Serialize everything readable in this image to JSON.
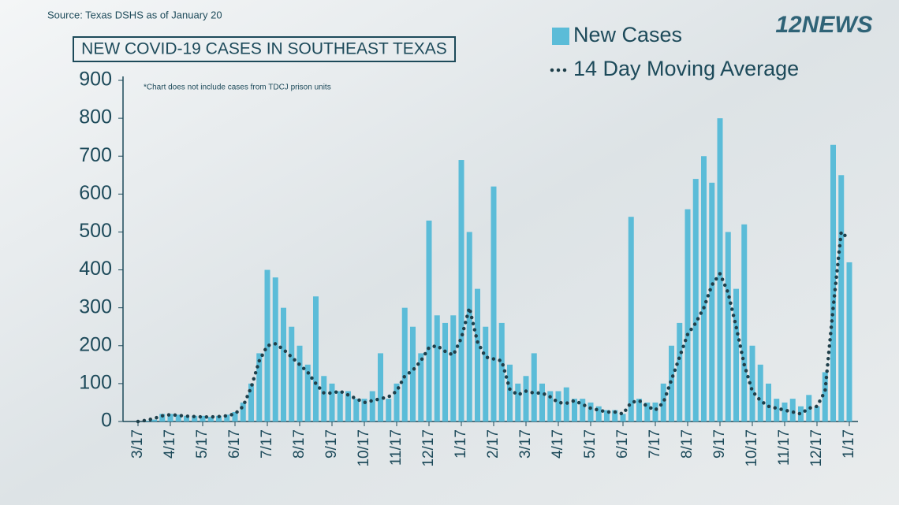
{
  "source": "Source: Texas DSHS as of January 20",
  "logo": "12NEWS",
  "chart_data": {
    "type": "bar",
    "title": "NEW COVID-19 CASES IN SOUTHEAST TEXAS",
    "annotation": "*Chart does not include cases from TDCJ prison units",
    "categories": [
      "3/17",
      null,
      null,
      null,
      "4/17",
      null,
      null,
      null,
      "5/17",
      null,
      null,
      null,
      "6/17",
      null,
      null,
      null,
      "7/17",
      null,
      null,
      null,
      "8/17",
      null,
      null,
      null,
      "9/17",
      null,
      null,
      null,
      "10/17",
      null,
      null,
      null,
      "11/17",
      null,
      null,
      null,
      "12/17",
      null,
      null,
      null,
      "1/17",
      null,
      null,
      null,
      "2/17",
      null,
      null,
      null,
      "3/17",
      null,
      null,
      null,
      "4/17",
      null,
      null,
      null,
      "5/17",
      null,
      null,
      null,
      "6/17",
      null,
      null,
      null,
      "7/17",
      null,
      null,
      null,
      "8/17",
      null,
      null,
      null,
      "9/17",
      null,
      null,
      null,
      "10/17",
      null,
      null,
      null,
      "11/17",
      null,
      null,
      null,
      "12/17",
      null,
      null,
      null,
      "1/17"
    ],
    "series": [
      {
        "name": "New Cases",
        "color": "#5bbcd8",
        "values": [
          0,
          2,
          5,
          20,
          20,
          18,
          15,
          15,
          15,
          12,
          15,
          18,
          25,
          50,
          100,
          180,
          400,
          380,
          300,
          250,
          200,
          150,
          330,
          120,
          100,
          80,
          80,
          60,
          60,
          80,
          180,
          60,
          100,
          300,
          250,
          180,
          530,
          280,
          260,
          280,
          690,
          500,
          350,
          250,
          620,
          260,
          150,
          100,
          120,
          180,
          100,
          80,
          80,
          90,
          60,
          60,
          50,
          40,
          30,
          30,
          20,
          540,
          60,
          50,
          50,
          100,
          200,
          260,
          560,
          640,
          700,
          630,
          800,
          500,
          350,
          520,
          200,
          150,
          100,
          60,
          50,
          60,
          40,
          70,
          40,
          130,
          730,
          650,
          420
        ]
      },
      {
        "name": "14 Day Moving Average",
        "type": "line",
        "color": "#1f3f4a",
        "values": [
          0,
          3,
          8,
          15,
          18,
          16,
          14,
          13,
          12,
          12,
          13,
          15,
          20,
          40,
          90,
          160,
          200,
          205,
          190,
          170,
          150,
          130,
          100,
          75,
          75,
          80,
          70,
          60,
          50,
          55,
          60,
          65,
          80,
          120,
          135,
          160,
          195,
          200,
          185,
          175,
          220,
          300,
          210,
          170,
          165,
          160,
          85,
          70,
          80,
          75,
          75,
          65,
          50,
          48,
          55,
          45,
          35,
          30,
          25,
          25,
          20,
          50,
          55,
          40,
          30,
          50,
          110,
          170,
          230,
          260,
          300,
          360,
          390,
          340,
          250,
          150,
          80,
          55,
          40,
          35,
          30,
          25,
          20,
          35,
          40,
          80,
          300,
          500,
          480
        ]
      }
    ],
    "ylim": [
      0,
      900
    ],
    "yticks": [
      0,
      100,
      200,
      300,
      400,
      500,
      600,
      700,
      800,
      900
    ]
  }
}
